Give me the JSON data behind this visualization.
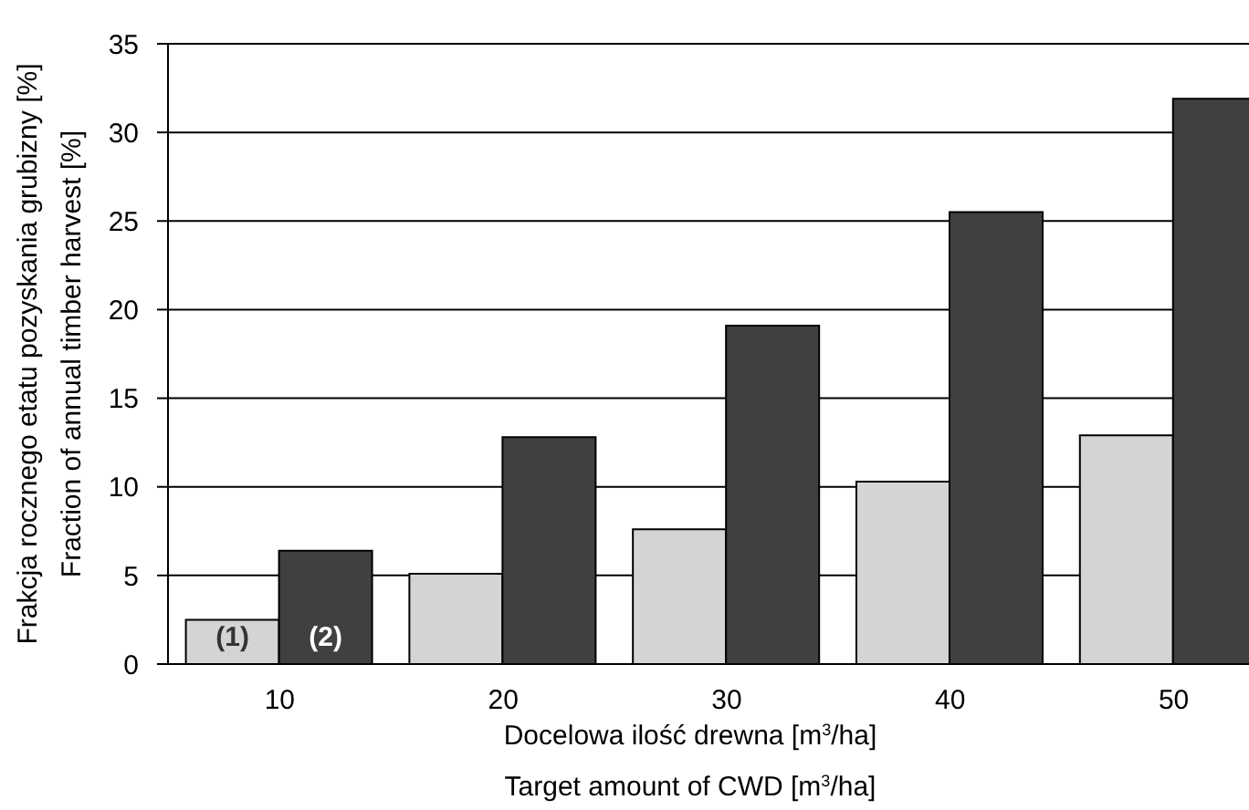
{
  "chart_data": {
    "type": "bar",
    "categories": [
      "10",
      "20",
      "30",
      "40",
      "50"
    ],
    "xlabel": "Docelowa ilość drewna [m$^{3}$/ha]\nTarget amount of CWD [m$^{3}$/ha]",
    "ylabel": "Frakcja rocznego etatu pozyskania grubizny [%]\nFraction of annual timber harvest [%]",
    "series": [
      {
        "name": "(1)",
        "color": "#d3d4d6",
        "values": [
          2.5,
          5.1,
          7.6,
          10.3,
          12.9
        ]
      },
      {
        "name": "(2)",
        "color": "#404040",
        "values": [
          6.4,
          12.8,
          19.1,
          25.5,
          31.9
        ]
      }
    ],
    "ylim": [
      0,
      35
    ],
    "yticks": [
      0,
      5,
      10,
      15,
      20,
      25,
      30,
      35
    ],
    "grid": "y"
  }
}
